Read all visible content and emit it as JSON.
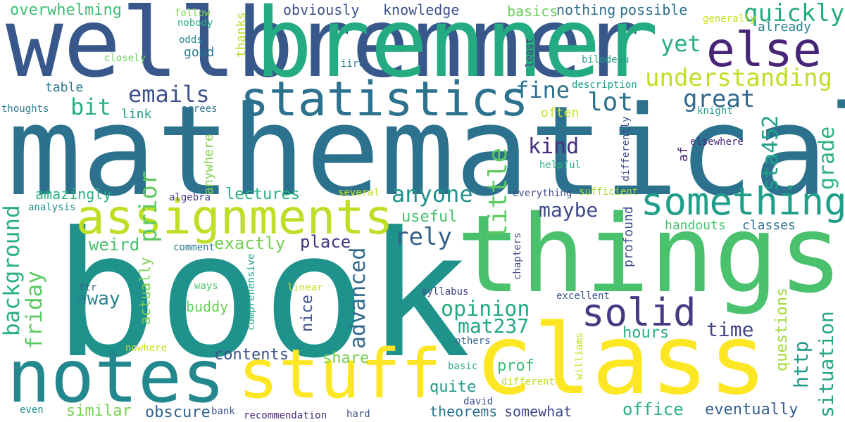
{
  "words": [
    {
      "text": "book",
      "color": "#20928c"
    },
    {
      "text": "mathematical",
      "color": "#2c728e"
    },
    {
      "text": "things",
      "color": "#4ac16d"
    },
    {
      "text": "class",
      "color": "#fde725"
    },
    {
      "text": "wellbrenner",
      "color": "#38588c"
    },
    {
      "text": "brenner",
      "color": "#25ab82"
    },
    {
      "text": "notes",
      "color": "#23888e"
    },
    {
      "text": "stuff",
      "color": "#fde725"
    },
    {
      "text": "assignments",
      "color": "#bddf26"
    },
    {
      "text": "statistics",
      "color": "#2c728e"
    },
    {
      "text": "else",
      "color": "#482576"
    },
    {
      "text": "something",
      "color": "#1f9e89"
    },
    {
      "text": "solid",
      "color": "#443983"
    },
    {
      "text": "background",
      "color": "#29af7f"
    },
    {
      "text": "friday",
      "color": "#5ec962"
    },
    {
      "text": "advanced",
      "color": "#31688e"
    },
    {
      "text": "little",
      "color": "#5ec962"
    },
    {
      "text": "prior",
      "color": "#5ec962"
    },
    {
      "text": "emails",
      "color": "#3b528b"
    },
    {
      "text": "quickly",
      "color": "#25ab82"
    },
    {
      "text": "understanding",
      "color": "#bddf26"
    },
    {
      "text": "great",
      "color": "#31688e"
    },
    {
      "text": "lot",
      "color": "#2c728e"
    },
    {
      "text": "fine",
      "color": "#2c728e"
    },
    {
      "text": "yet",
      "color": "#29af7f"
    },
    {
      "text": "bit",
      "color": "#29af7f"
    },
    {
      "text": "kind",
      "color": "#472d7b"
    },
    {
      "text": "anyone",
      "color": "#20928c"
    },
    {
      "text": "maybe",
      "color": "#3e4a89"
    },
    {
      "text": "rely",
      "color": "#355f8d"
    },
    {
      "text": "opinion",
      "color": "#23a983"
    },
    {
      "text": "mat237",
      "color": "#22a785"
    },
    {
      "text": "time",
      "color": "#414487"
    },
    {
      "text": "sta452",
      "color": "#1fa088"
    },
    {
      "text": "grade",
      "color": "#2db27d"
    },
    {
      "text": "http",
      "color": "#1f9a8a"
    },
    {
      "text": "situation",
      "color": "#22a785"
    },
    {
      "text": "questions",
      "color": "#a0da39"
    },
    {
      "text": "lectures",
      "color": "#29af7f"
    },
    {
      "text": "amazingly",
      "color": "#2ab07f"
    },
    {
      "text": "weird",
      "color": "#4ac16d"
    },
    {
      "text": "exactly",
      "color": "#75d054"
    },
    {
      "text": "place",
      "color": "#453781"
    },
    {
      "text": "useful",
      "color": "#4ac16d"
    },
    {
      "text": "away",
      "color": "#26828e"
    },
    {
      "text": "hours",
      "color": "#29af7f"
    },
    {
      "text": "contents",
      "color": "#3b528b"
    },
    {
      "text": "share",
      "color": "#7ad151"
    },
    {
      "text": "prof",
      "color": "#3dbc74"
    },
    {
      "text": "quite",
      "color": "#1f9a8a"
    },
    {
      "text": "similar",
      "color": "#75d054"
    },
    {
      "text": "obscure",
      "color": "#33638d"
    },
    {
      "text": "theorems",
      "color": "#2c728e"
    },
    {
      "text": "somewhat",
      "color": "#3e4a89"
    },
    {
      "text": "office",
      "color": "#2ab07f"
    },
    {
      "text": "eventually",
      "color": "#355f8d"
    },
    {
      "text": "handouts",
      "color": "#4ac16d"
    },
    {
      "text": "classes",
      "color": "#2d708e"
    },
    {
      "text": "buddy",
      "color": "#6ccd5a"
    },
    {
      "text": "nice",
      "color": "#3b528b"
    },
    {
      "text": "actually",
      "color": "#7ad151"
    },
    {
      "text": "anywhere",
      "color": "#84d44b"
    },
    {
      "text": "overwhelming",
      "color": "#3dbc74"
    },
    {
      "text": "obviously",
      "color": "#3b528b"
    },
    {
      "text": "knowledge",
      "color": "#3b528b"
    },
    {
      "text": "basics",
      "color": "#6ccd5a"
    },
    {
      "text": "nothing",
      "color": "#2d708e"
    },
    {
      "text": "possible",
      "color": "#2d708e"
    },
    {
      "text": "good",
      "color": "#2a788e"
    },
    {
      "text": "thanks",
      "color": "#b5de2b"
    },
    {
      "text": "table",
      "color": "#2a788e"
    },
    {
      "text": "link",
      "color": "#1f9a8a"
    },
    {
      "text": "profound",
      "color": "#3b528b"
    },
    {
      "text": "often",
      "color": "#c8e020"
    },
    {
      "text": "af",
      "color": "#482576"
    },
    {
      "text": "helpful",
      "color": "#2db27d"
    },
    {
      "text": "differently",
      "color": "#3e4a89"
    },
    {
      "text": "elsewhere",
      "color": "#482878"
    },
    {
      "text": "knight",
      "color": "#1f9e89"
    },
    {
      "text": "description",
      "color": "#1fa088"
    },
    {
      "text": "bilodeau",
      "color": "#1fa088"
    },
    {
      "text": "already",
      "color": "#25848e"
    },
    {
      "text": "generally",
      "color": "#c8e020"
    },
    {
      "text": "least",
      "color": "#46337f"
    },
    {
      "text": "iirc",
      "color": "#2a788e"
    },
    {
      "text": "closely",
      "color": "#6ccd5a"
    },
    {
      "text": "odds",
      "color": "#25848e"
    },
    {
      "text": "nobody",
      "color": "#29af7f"
    },
    {
      "text": "follow",
      "color": "#84d44b"
    },
    {
      "text": "thoughts",
      "color": "#2a788e"
    },
    {
      "text": "agrees",
      "color": "#2d708e"
    },
    {
      "text": "algebra",
      "color": "#433e85"
    },
    {
      "text": "analysis",
      "color": "#21918c"
    },
    {
      "text": "several",
      "color": "#c8e020"
    },
    {
      "text": "everything",
      "color": "#3e4a89"
    },
    {
      "text": "sufficient",
      "color": "#a5db36"
    },
    {
      "text": "comment",
      "color": "#2a788e"
    },
    {
      "text": "chapters",
      "color": "#3e4a89"
    },
    {
      "text": "ways",
      "color": "#4ac16d"
    },
    {
      "text": "ftr",
      "color": "#355f8d"
    },
    {
      "text": "comprehensive",
      "color": "#1fa088"
    },
    {
      "text": "linear",
      "color": "#c8e020"
    },
    {
      "text": "syllabus",
      "color": "#414487"
    },
    {
      "text": "excellent",
      "color": "#3b528b"
    },
    {
      "text": "williams",
      "color": "#c8e020"
    },
    {
      "text": "others",
      "color": "#33638d"
    },
    {
      "text": "nowhere",
      "color": "#c8e020"
    },
    {
      "text": "basic",
      "color": "#22a785"
    },
    {
      "text": "different",
      "color": "#bddf26"
    },
    {
      "text": "david",
      "color": "#3b528b"
    },
    {
      "text": "even",
      "color": "#21918c"
    },
    {
      "text": "bank",
      "color": "#3b528b"
    },
    {
      "text": "recommendation",
      "color": "#482878"
    },
    {
      "text": "hard",
      "color": "#3b528b"
    }
  ]
}
